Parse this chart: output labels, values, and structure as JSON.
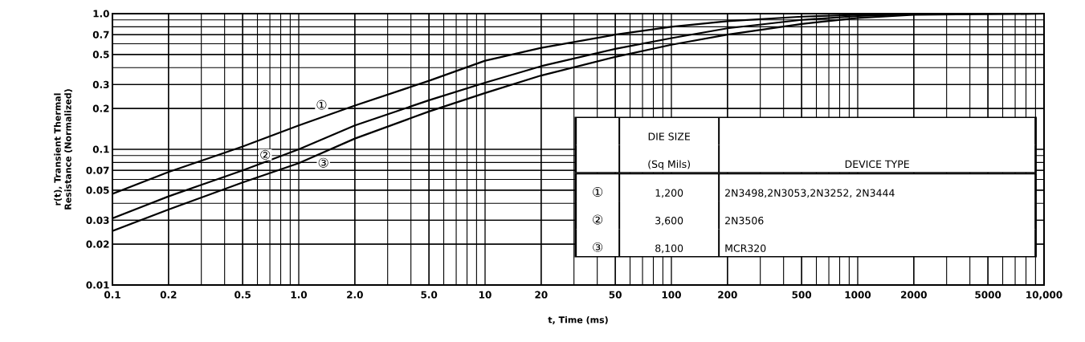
{
  "chart_data": {
    "type": "line",
    "xlabel": "t, Time (ms)",
    "ylabel": "r(t), Transient Thermal Resistance (Normalized)",
    "log": "xy",
    "grid": true,
    "legend": false,
    "marker": "none",
    "line_style": "solid",
    "xlim": [
      0.1,
      10000
    ],
    "ylim": [
      0.01,
      1.0
    ],
    "xticks": [
      0.1,
      0.2,
      0.5,
      {
        "value": 1,
        "label": "1.0"
      },
      {
        "value": 2,
        "label": "2.0"
      },
      {
        "value": 5,
        "label": "5.0"
      },
      10,
      20,
      50,
      100,
      200,
      500,
      1000,
      2000,
      5000,
      {
        "value": 10000,
        "label": "10,000"
      }
    ],
    "yticks": [
      0.01,
      0.02,
      0.03,
      0.05,
      0.07,
      0.1,
      0.2,
      0.3,
      0.5,
      0.7,
      {
        "value": 1,
        "label": "1.0"
      }
    ],
    "x": [
      0.1,
      0.2,
      0.5,
      1,
      2,
      5,
      10,
      20,
      50,
      100,
      200,
      500,
      1000,
      2000,
      10000
    ],
    "series": [
      {
        "name": "①",
        "color": "#000000",
        "values": [
          0.047,
          0.068,
          0.105,
          0.15,
          0.21,
          0.32,
          0.45,
          0.56,
          0.7,
          0.8,
          0.88,
          0.95,
          0.98,
          1.0,
          1.0
        ]
      },
      {
        "name": "②",
        "color": "#000000",
        "values": [
          0.031,
          0.045,
          0.07,
          0.1,
          0.15,
          0.23,
          0.31,
          0.41,
          0.55,
          0.66,
          0.78,
          0.9,
          0.96,
          0.99,
          1.0
        ]
      },
      {
        "name": "③",
        "color": "#000000",
        "values": [
          0.025,
          0.036,
          0.057,
          0.079,
          0.12,
          0.19,
          0.26,
          0.35,
          0.48,
          0.59,
          0.7,
          0.84,
          0.93,
          0.98,
          1.0
        ]
      }
    ],
    "annotations": [
      "DIE SIZE",
      "(Sq Mils)",
      "DEVICE TYPE",
      "①",
      "1,200",
      "2N3498,2N3053,2N3252, 2N3444",
      "②",
      "3,600",
      "2N3506",
      "③",
      "8,100",
      "MCR320"
    ]
  }
}
